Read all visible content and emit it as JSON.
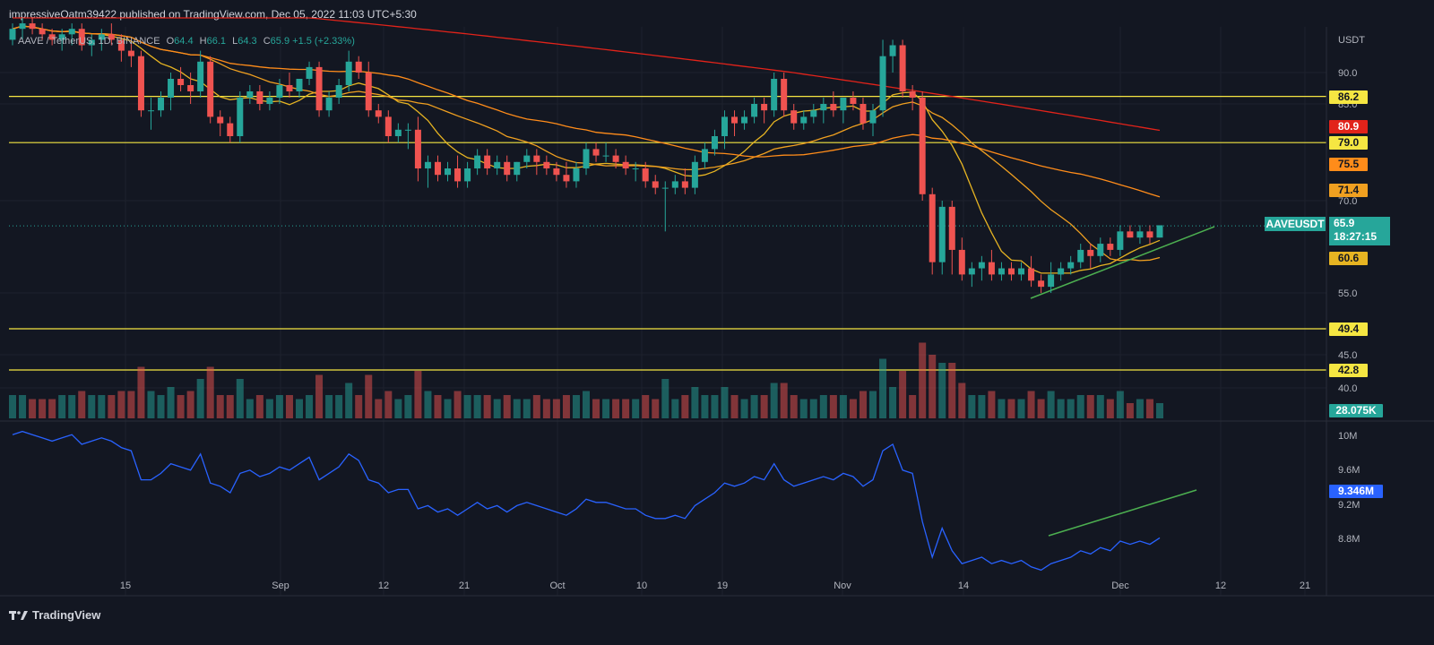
{
  "header": {
    "publisher": "impressiveOatm39422 published on TradingView.com, Dec 05, 2022 11:03 UTC+5:30"
  },
  "legend": {
    "symbol": "AAVE / TetherUS, 1D, BINANCE",
    "o_label": "O",
    "o_value": "64.4",
    "h_label": "H",
    "h_value": "66.1",
    "l_label": "L",
    "l_value": "64.3",
    "c_label": "C",
    "c_value": "65.9",
    "change": "+1.5 (+2.33%)"
  },
  "price_axis": {
    "currency": "USDT",
    "ticks": [
      "90.0",
      "85.0",
      "70.0",
      "55.0",
      "45.0",
      "40.0"
    ]
  },
  "osc_axis": {
    "ticks": [
      "10M",
      "9.6M",
      "9.2M",
      "8.8M"
    ]
  },
  "time_axis": {
    "ticks": [
      "15",
      "Sep",
      "12",
      "21",
      "Oct",
      "10",
      "19",
      "Nov",
      "14",
      "Dec",
      "12",
      "21"
    ]
  },
  "badges": {
    "hl_862": "86.2",
    "ma_red": "80.9",
    "hl_790": "79.0",
    "ma_orange": "75.5",
    "ma_gold": "71.4",
    "ma_yellow": "60.6",
    "hl_494": "49.4",
    "hl_428": "42.8",
    "volume": "28.075K",
    "osc_value": "9.346M",
    "symbol": "AAVEUSDT",
    "last_price": "65.9",
    "countdown": "18:27:15"
  },
  "colors": {
    "up": "#26a69a",
    "down": "#ef5350",
    "hline": "#f5e642",
    "ma_red": "#e2231a",
    "ma_orange": "#ff8c1a",
    "ma_gold": "#f0a020",
    "ma_yellow": "#e6b422",
    "osc_line": "#2962ff",
    "trendline": "#4caf50"
  },
  "footer": {
    "brand": "TradingView"
  },
  "chart_data": {
    "type": "candlestick",
    "title": "AAVE / TetherUS, 1D, BINANCE",
    "ylabel": "USDT",
    "horizontal_levels": [
      86.2,
      79.0,
      49.4,
      42.8
    ],
    "moving_averages_last": {
      "red": 80.9,
      "orange": 75.5,
      "gold": 71.4,
      "yellow": 60.6
    },
    "last": {
      "open": 64.4,
      "high": 66.1,
      "low": 64.3,
      "close": 65.9
    },
    "candles": [
      [
        96,
        99,
        95,
        98
      ],
      [
        98,
        100,
        96,
        99
      ],
      [
        99,
        100,
        97,
        98
      ],
      [
        98,
        99,
        96,
        97
      ],
      [
        97,
        98,
        95,
        96
      ],
      [
        96,
        98,
        94,
        97
      ],
      [
        97,
        99,
        95,
        98
      ],
      [
        98,
        99,
        94,
        95
      ],
      [
        95,
        97,
        93,
        96
      ],
      [
        96,
        98,
        94,
        97
      ],
      [
        97,
        99,
        95,
        96
      ],
      [
        96,
        97,
        92,
        94
      ],
      [
        94,
        96,
        91,
        93
      ],
      [
        93,
        94,
        83,
        84
      ],
      [
        84,
        86,
        81,
        84
      ],
      [
        84,
        87,
        83,
        86
      ],
      [
        86,
        90,
        84,
        89
      ],
      [
        89,
        91,
        87,
        88
      ],
      [
        88,
        90,
        85,
        87
      ],
      [
        87,
        94,
        86,
        92
      ],
      [
        92,
        93,
        82,
        83
      ],
      [
        83,
        84,
        80,
        82
      ],
      [
        82,
        83,
        79,
        80
      ],
      [
        80,
        87,
        79,
        86
      ],
      [
        86,
        88,
        85,
        87
      ],
      [
        87,
        88,
        84,
        85
      ],
      [
        85,
        87,
        84,
        86
      ],
      [
        86,
        89,
        85,
        88
      ],
      [
        88,
        90,
        86,
        87
      ],
      [
        87,
        89,
        86,
        89
      ],
      [
        89,
        92,
        88,
        91
      ],
      [
        91,
        92,
        83,
        84
      ],
      [
        84,
        87,
        83,
        86
      ],
      [
        86,
        89,
        85,
        88
      ],
      [
        88,
        94,
        87,
        92
      ],
      [
        92,
        93,
        89,
        90
      ],
      [
        90,
        92,
        83,
        84
      ],
      [
        84,
        85,
        82,
        83
      ],
      [
        83,
        84,
        79,
        80
      ],
      [
        80,
        82,
        79,
        81
      ],
      [
        81,
        82,
        78,
        81
      ],
      [
        81,
        83,
        73,
        75
      ],
      [
        75,
        77,
        72,
        76
      ],
      [
        76,
        77,
        73,
        74
      ],
      [
        74,
        76,
        73,
        75
      ],
      [
        75,
        77,
        72,
        73
      ],
      [
        73,
        76,
        72,
        75
      ],
      [
        75,
        78,
        74,
        77
      ],
      [
        77,
        78,
        74,
        75
      ],
      [
        75,
        77,
        74,
        76
      ],
      [
        76,
        77,
        73,
        74
      ],
      [
        74,
        76,
        73,
        76
      ],
      [
        76,
        78,
        75,
        77
      ],
      [
        77,
        78,
        74,
        76
      ],
      [
        76,
        77,
        74,
        75
      ],
      [
        75,
        76,
        73,
        74
      ],
      [
        74,
        76,
        72,
        73
      ],
      [
        73,
        76,
        72,
        75
      ],
      [
        75,
        79,
        74,
        78
      ],
      [
        78,
        79,
        76,
        77
      ],
      [
        77,
        79,
        76,
        77
      ],
      [
        77,
        78,
        75,
        76
      ],
      [
        76,
        77,
        74,
        75
      ],
      [
        75,
        76,
        73,
        75
      ],
      [
        75,
        76,
        72,
        73
      ],
      [
        73,
        74,
        71,
        72
      ],
      [
        72,
        73,
        65,
        72
      ],
      [
        72,
        74,
        71,
        73
      ],
      [
        73,
        75,
        71,
        72
      ],
      [
        72,
        77,
        71,
        76
      ],
      [
        76,
        79,
        75,
        78
      ],
      [
        78,
        81,
        77,
        80
      ],
      [
        80,
        84,
        78,
        83
      ],
      [
        83,
        84,
        80,
        82
      ],
      [
        82,
        84,
        81,
        83
      ],
      [
        83,
        86,
        82,
        85
      ],
      [
        85,
        86,
        82,
        84
      ],
      [
        84,
        90,
        83,
        89
      ],
      [
        89,
        90,
        83,
        84
      ],
      [
        84,
        85,
        81,
        82
      ],
      [
        82,
        84,
        81,
        83
      ],
      [
        83,
        85,
        82,
        84
      ],
      [
        84,
        86,
        82,
        85
      ],
      [
        85,
        87,
        83,
        84
      ],
      [
        84,
        86,
        82,
        86
      ],
      [
        86,
        87,
        84,
        85
      ],
      [
        85,
        86,
        81,
        82
      ],
      [
        82,
        85,
        80,
        84
      ],
      [
        84,
        96,
        83,
        93
      ],
      [
        93,
        96,
        90,
        95
      ],
      [
        95,
        96,
        86,
        87
      ],
      [
        87,
        88,
        84,
        86
      ],
      [
        86,
        87,
        70,
        71
      ],
      [
        71,
        72,
        58,
        60
      ],
      [
        60,
        70,
        58,
        69
      ],
      [
        69,
        70,
        58,
        62
      ],
      [
        62,
        64,
        57,
        58
      ],
      [
        58,
        60,
        56,
        59
      ],
      [
        59,
        61,
        57,
        60
      ],
      [
        60,
        62,
        57,
        58
      ],
      [
        58,
        60,
        57,
        59
      ],
      [
        59,
        60,
        57,
        58
      ],
      [
        58,
        60,
        57,
        59
      ],
      [
        59,
        61,
        56,
        57
      ],
      [
        57,
        58,
        55,
        56
      ],
      [
        56,
        60,
        55,
        58
      ],
      [
        58,
        60,
        57,
        59
      ],
      [
        59,
        61,
        58,
        60
      ],
      [
        60,
        63,
        59,
        62
      ],
      [
        62,
        63,
        59,
        61
      ],
      [
        61,
        64,
        60,
        63
      ],
      [
        63,
        64,
        61,
        62
      ],
      [
        62,
        66,
        61,
        65
      ],
      [
        65,
        66,
        64,
        64
      ],
      [
        64,
        66,
        63,
        65
      ],
      [
        65,
        66,
        63,
        64
      ],
      [
        64,
        66,
        64,
        66
      ]
    ]
  }
}
